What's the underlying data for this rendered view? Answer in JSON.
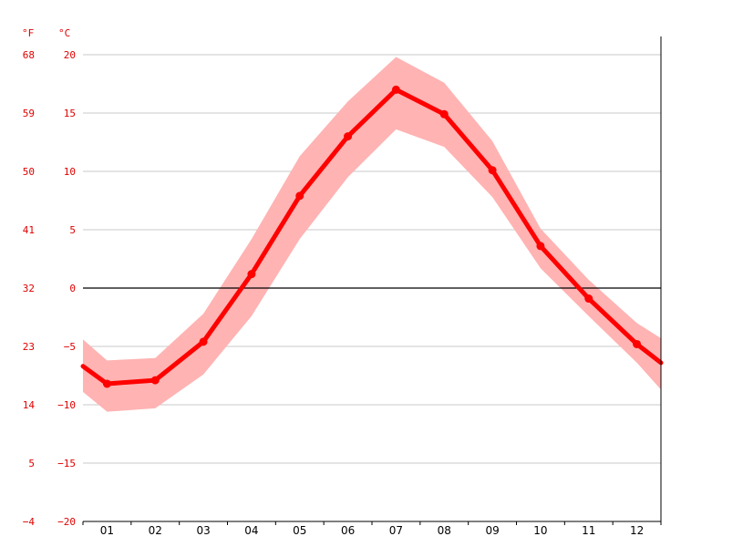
{
  "chart_data": {
    "type": "line",
    "title": "",
    "xlabel": "",
    "ylabel": "",
    "units": {
      "fahrenheit": "°F",
      "celsius": "°C"
    },
    "categories": [
      "01",
      "02",
      "03",
      "04",
      "05",
      "06",
      "07",
      "08",
      "09",
      "10",
      "11",
      "12"
    ],
    "series": [
      {
        "values": [
          -8.2,
          -7.9,
          -4.6,
          1.2,
          7.9,
          13.0,
          17.0,
          14.9,
          10.1,
          3.6,
          -0.9,
          -4.8
        ],
        "band_high": [
          -6.2,
          -6.0,
          -2.2,
          4.2,
          11.3,
          16.0,
          19.8,
          17.6,
          12.6,
          5.1,
          0.7,
          -3.0
        ],
        "band_low": [
          -10.6,
          -10.3,
          -7.4,
          -2.4,
          4.2,
          9.5,
          13.6,
          12.1,
          7.8,
          1.7,
          -2.4,
          -6.4
        ]
      }
    ],
    "edge_values": {
      "start": -6.7,
      "end": -6.4
    },
    "edge_band_high": {
      "start": -4.4,
      "end": -4.3
    },
    "edge_band_low": {
      "start": -8.9,
      "end": -8.7
    },
    "ylim": [
      -20,
      20
    ],
    "yticks_c": [
      "20",
      "15",
      "10",
      "5",
      "0",
      "−5",
      "−10",
      "−15",
      "−20"
    ],
    "yticks_f": [
      "68",
      "59",
      "50",
      "41",
      "32",
      "23",
      "14",
      "5",
      "−4"
    ],
    "grid": true,
    "legend": "none",
    "colors": {
      "line": "#ff0000",
      "band": "#ffb3b3",
      "grid": "#c8c8c8",
      "zero_line": "#000000",
      "tick_text": "#e00000"
    }
  }
}
